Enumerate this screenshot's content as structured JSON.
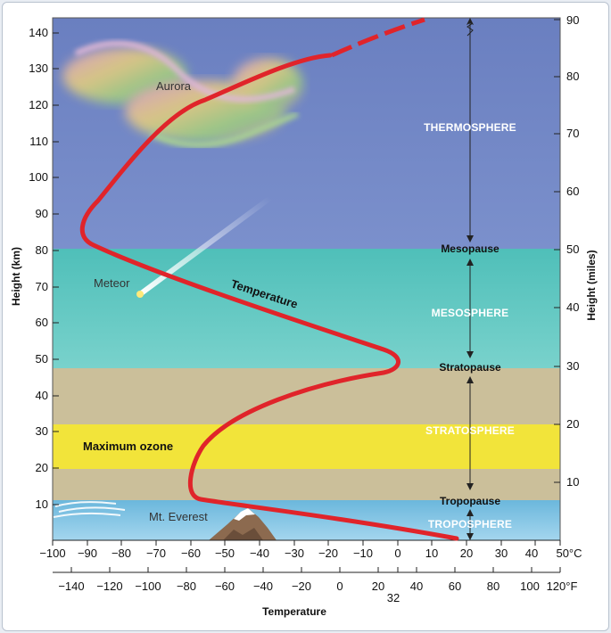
{
  "labels": {
    "y_left_title": "Height (km)",
    "y_right_title": "Height (miles)",
    "x_title": "Temperature",
    "celsius_unit_label": "50°C",
    "fahrenheit_unit_label": "120°F",
    "temperature_curve_label": "Temperature",
    "aurora": "Aurora",
    "meteor": "Meteor",
    "everest": "Mt. Everest",
    "ozone": "Maximum ozone",
    "thermosphere": "THERMOSPHERE",
    "mesopause": "Mesopause",
    "mesosphere": "MESOSPHERE",
    "stratopause": "Stratopause",
    "stratosphere": "STRATOSPHERE",
    "tropopause": "Tropopause",
    "troposphere": "TROPOSPHERE",
    "freezing_32": "32"
  },
  "ticks": {
    "km": [
      "10",
      "20",
      "30",
      "40",
      "50",
      "60",
      "70",
      "80",
      "90",
      "100",
      "110",
      "120",
      "130",
      "140"
    ],
    "miles": [
      "10",
      "20",
      "30",
      "40",
      "50",
      "60",
      "70",
      "80",
      "90"
    ],
    "celsius": [
      "−100",
      "−90",
      "−80",
      "−70",
      "−60",
      "−50",
      "−40",
      "−30",
      "−20",
      "−10",
      "0",
      "10",
      "20",
      "30",
      "40"
    ],
    "fahrenheit": [
      "−140",
      "−120",
      "−100",
      "−80",
      "−60",
      "−40",
      "−20",
      "0",
      "20",
      "40",
      "60",
      "80",
      "100"
    ]
  },
  "colors": {
    "thermosphere": "#6f84c2",
    "mesosphere": "#5cc6c0",
    "stratosphere": "#cbbf9a",
    "ozone_band": "#f2e43a",
    "troposphere": "#7ec2e2",
    "temperature_line": "#e0242a"
  }
}
